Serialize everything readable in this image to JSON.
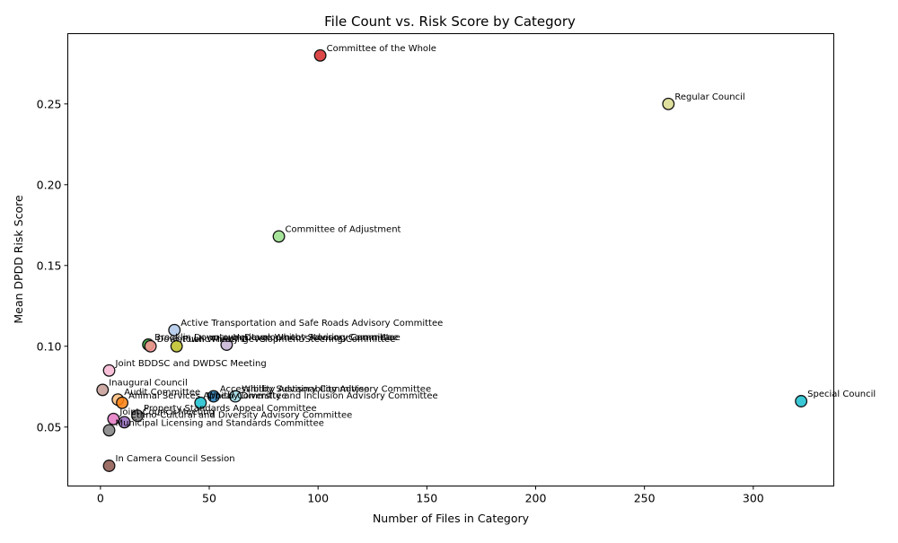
{
  "chart_data": {
    "type": "scatter",
    "title": "File Count vs. Risk Score by Category",
    "xlabel": "Number of Files in Category",
    "ylabel": "Mean DPDD Risk Score",
    "xlim": [
      -15,
      337
    ],
    "ylim": [
      0.0135,
      0.2935
    ],
    "xticks": [
      0,
      50,
      100,
      150,
      200,
      250,
      300
    ],
    "yticks": [
      0.05,
      0.1,
      0.15,
      0.2,
      0.25
    ],
    "ytick_labels": [
      "0.05",
      "0.10",
      "0.15",
      "0.20",
      "0.25"
    ],
    "grid": false,
    "points": [
      {
        "label": "Committee of the Whole",
        "x": 101,
        "y": 0.28,
        "color": "#d62728"
      },
      {
        "label": "Regular Council",
        "x": 261,
        "y": 0.25,
        "color": "#dbdb8d"
      },
      {
        "label": "Committee of Adjustment",
        "x": 82,
        "y": 0.168,
        "color": "#98df8a"
      },
      {
        "label": "Active Transportation and Safe Roads Advisory Committee",
        "x": 34,
        "y": 0.11,
        "color": "#aec7e8"
      },
      {
        "label": "Brooklin Downtown Development Steering Committee",
        "x": 22,
        "y": 0.101,
        "color": "#2ca02c"
      },
      {
        "label": "Heritage Whitby Advisory Committee",
        "x": 58,
        "y": 0.101,
        "color": "#c5b0d5"
      },
      {
        "label": "Downtown Whitby Development Steering Committee",
        "x": 23,
        "y": 0.1,
        "color": "#ff9896"
      },
      {
        "label": "Public Meeting",
        "x": 35,
        "y": 0.1,
        "color": "#bcbd22"
      },
      {
        "label": "Joint BDDSC and DWDSC Meeting",
        "x": 4,
        "y": 0.085,
        "color": "#f7b6d2"
      },
      {
        "label": "Inaugural Council",
        "x": 1,
        "y": 0.073,
        "color": "#c49c94"
      },
      {
        "label": "Accessibility Advisory Committee",
        "x": 52,
        "y": 0.069,
        "color": "#1f77b4"
      },
      {
        "label": "Whitby Sustainability Advisory Committee",
        "x": 62,
        "y": 0.069,
        "color": "#9edae5"
      },
      {
        "label": "Audit Committee",
        "x": 8,
        "y": 0.067,
        "color": "#ffbb78"
      },
      {
        "label": "Whitby Diversity and Inclusion Advisory Committee",
        "x": 46,
        "y": 0.065,
        "color": "#17becf"
      },
      {
        "label": "Animal Services Appeal Committee",
        "x": 10,
        "y": 0.065,
        "color": "#ff7f0e"
      },
      {
        "label": "Special Council",
        "x": 322,
        "y": 0.066,
        "color": "#17becf"
      },
      {
        "label": "Property Standards Appeal Committee",
        "x": 17,
        "y": 0.057,
        "color": "#7f7f7f"
      },
      {
        "label": "Joint Council Meeting",
        "x": 6,
        "y": 0.055,
        "color": "#e377c2"
      },
      {
        "label": "Ethno-Cultural and Diversity Advisory Committee",
        "x": 11,
        "y": 0.053,
        "color": "#9467bd"
      },
      {
        "label": "Municipal Licensing and Standards Committee",
        "x": 4,
        "y": 0.048,
        "color": "#7f7f7f"
      },
      {
        "label": "In Camera Council Session",
        "x": 4,
        "y": 0.026,
        "color": "#8c564b"
      }
    ]
  }
}
